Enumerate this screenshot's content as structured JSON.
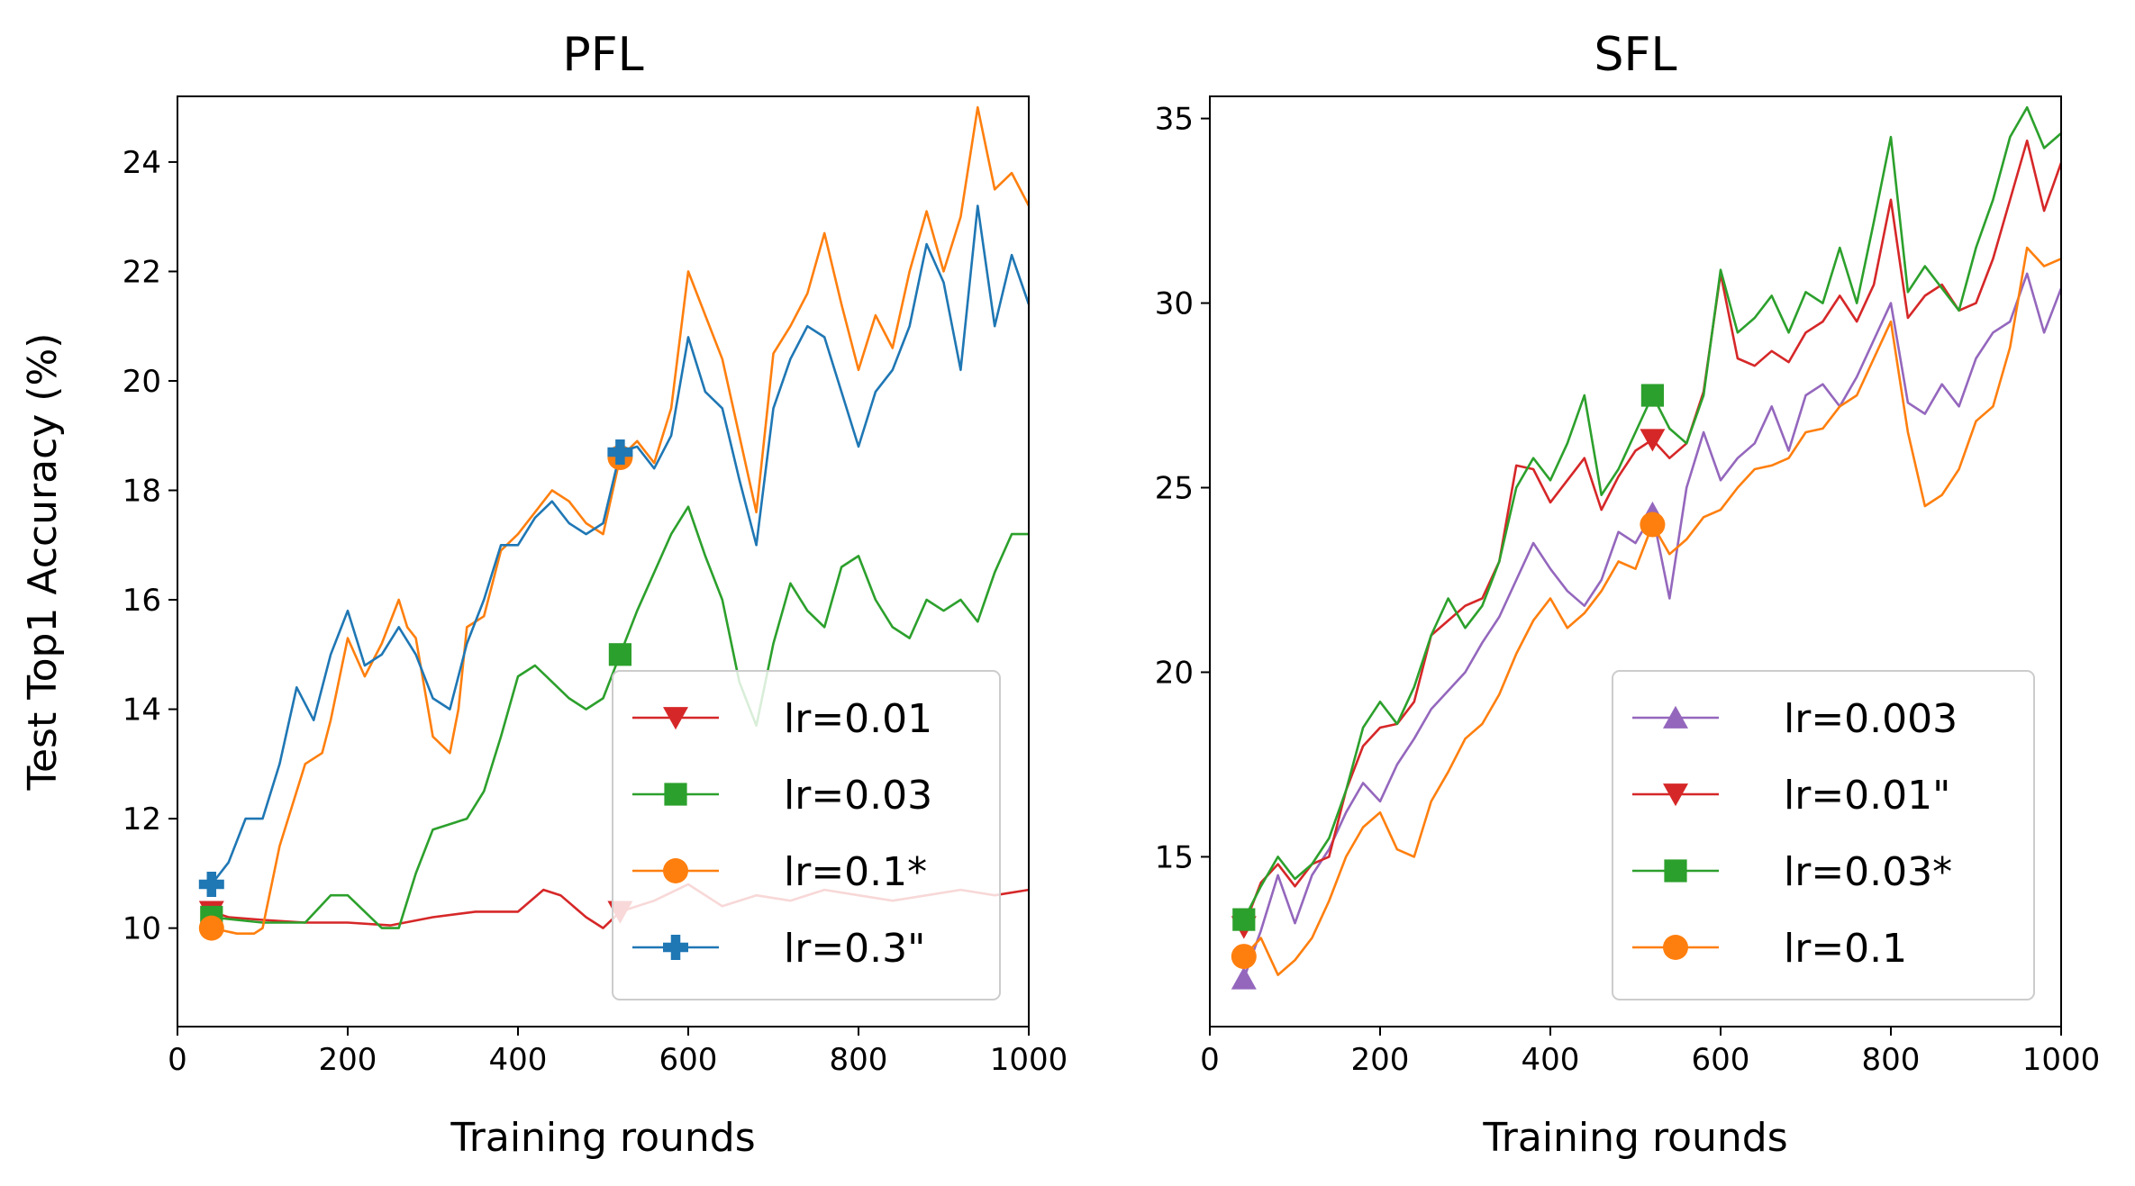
{
  "chart_data": [
    {
      "type": "line",
      "title": "PFL",
      "xlabel": "Training rounds",
      "ylabel": "Test Top1 Accuracy (%)",
      "xlim": [
        0,
        1000
      ],
      "ylim": [
        8.2,
        25.2
      ],
      "xticks": [
        0,
        200,
        400,
        600,
        800,
        1000
      ],
      "yticks": [
        10,
        12,
        14,
        16,
        18,
        20,
        22,
        24
      ],
      "legend_position": "lower-right",
      "series": [
        {
          "name": "lr=0.01",
          "color": "#d62728",
          "marker": "triangle-down",
          "marker_x": [
            40,
            520
          ],
          "x": [
            40,
            60,
            100,
            150,
            200,
            250,
            300,
            350,
            400,
            430,
            450,
            480,
            500,
            520,
            560,
            600,
            640,
            680,
            720,
            760,
            800,
            840,
            880,
            920,
            960,
            1000
          ],
          "y": [
            10.3,
            10.2,
            10.15,
            10.1,
            10.1,
            10.05,
            10.2,
            10.3,
            10.3,
            10.7,
            10.6,
            10.2,
            10.0,
            10.3,
            10.5,
            10.8,
            10.4,
            10.6,
            10.5,
            10.7,
            10.6,
            10.5,
            10.6,
            10.7,
            10.6,
            10.7
          ]
        },
        {
          "name": "lr=0.03",
          "color": "#2ca02c",
          "marker": "square",
          "marker_x": [
            40,
            520
          ],
          "x": [
            40,
            100,
            150,
            180,
            200,
            240,
            260,
            280,
            300,
            340,
            360,
            380,
            400,
            420,
            440,
            460,
            480,
            500,
            520,
            540,
            560,
            580,
            600,
            620,
            640,
            660,
            680,
            700,
            720,
            740,
            760,
            780,
            800,
            820,
            840,
            860,
            880,
            900,
            920,
            940,
            960,
            980,
            1000
          ],
          "y": [
            10.2,
            10.1,
            10.1,
            10.6,
            10.6,
            10.0,
            10.0,
            11.0,
            11.8,
            12.0,
            12.5,
            13.5,
            14.6,
            14.8,
            14.5,
            14.2,
            14.0,
            14.2,
            15.0,
            15.8,
            16.5,
            17.2,
            17.7,
            16.8,
            16.0,
            14.5,
            13.7,
            15.2,
            16.3,
            15.8,
            15.5,
            16.6,
            16.8,
            16.0,
            15.5,
            15.3,
            16.0,
            15.8,
            16.0,
            15.6,
            16.5,
            17.2,
            17.2
          ]
        },
        {
          "name": "lr=0.1*",
          "color": "#ff7f0e",
          "marker": "circle",
          "marker_x": [
            40,
            520
          ],
          "x": [
            40,
            70,
            90,
            100,
            120,
            150,
            170,
            180,
            200,
            220,
            240,
            260,
            270,
            280,
            300,
            320,
            330,
            340,
            360,
            380,
            400,
            420,
            440,
            460,
            480,
            500,
            520,
            540,
            560,
            580,
            600,
            620,
            640,
            660,
            680,
            700,
            720,
            740,
            760,
            780,
            800,
            820,
            840,
            860,
            880,
            900,
            920,
            940,
            960,
            980,
            1000
          ],
          "y": [
            10.0,
            9.9,
            9.9,
            10.0,
            11.5,
            13.0,
            13.2,
            13.8,
            15.3,
            14.6,
            15.2,
            16.0,
            15.5,
            15.3,
            13.5,
            13.2,
            14.0,
            15.5,
            15.7,
            16.9,
            17.2,
            17.6,
            18.0,
            17.8,
            17.4,
            17.2,
            18.6,
            18.9,
            18.5,
            19.5,
            22.0,
            21.2,
            20.4,
            19.0,
            17.6,
            20.5,
            21.0,
            21.6,
            22.7,
            21.4,
            20.2,
            21.2,
            20.6,
            22.0,
            23.1,
            22.0,
            23.0,
            25.0,
            23.5,
            23.8,
            23.2
          ]
        },
        {
          "name": "lr=0.3\"",
          "color": "#1f77b4",
          "marker": "plus",
          "marker_x": [
            40,
            520
          ],
          "x": [
            40,
            60,
            80,
            100,
            120,
            140,
            160,
            180,
            200,
            220,
            240,
            260,
            280,
            300,
            320,
            340,
            360,
            380,
            400,
            420,
            440,
            460,
            480,
            500,
            520,
            540,
            560,
            580,
            600,
            620,
            640,
            660,
            680,
            700,
            720,
            740,
            760,
            780,
            800,
            820,
            840,
            860,
            880,
            900,
            920,
            940,
            960,
            980,
            1000
          ],
          "y": [
            10.8,
            11.2,
            12.0,
            12.0,
            13.0,
            14.4,
            13.8,
            15.0,
            15.8,
            14.8,
            15.0,
            15.5,
            15.0,
            14.2,
            14.0,
            15.2,
            16.0,
            17.0,
            17.0,
            17.5,
            17.8,
            17.4,
            17.2,
            17.4,
            18.7,
            18.8,
            18.4,
            19.0,
            20.8,
            19.8,
            19.5,
            18.2,
            17.0,
            19.5,
            20.4,
            21.0,
            20.8,
            19.8,
            18.8,
            19.8,
            20.2,
            21.0,
            22.5,
            21.8,
            20.2,
            23.2,
            21.0,
            22.3,
            21.4
          ]
        }
      ]
    },
    {
      "type": "line",
      "title": "SFL",
      "xlabel": "Training rounds",
      "ylabel": "",
      "xlim": [
        0,
        1000
      ],
      "ylim": [
        10.4,
        35.6
      ],
      "xticks": [
        0,
        200,
        400,
        600,
        800,
        1000
      ],
      "yticks": [
        15,
        20,
        25,
        30,
        35
      ],
      "legend_position": "lower-right",
      "series": [
        {
          "name": "lr=0.003",
          "color": "#9467bd",
          "marker": "triangle-up",
          "marker_x": [
            40,
            520
          ],
          "x": [
            40,
            60,
            80,
            100,
            120,
            140,
            160,
            180,
            200,
            220,
            240,
            260,
            280,
            300,
            320,
            340,
            360,
            380,
            400,
            420,
            440,
            460,
            480,
            500,
            520,
            540,
            560,
            580,
            600,
            620,
            640,
            660,
            680,
            700,
            720,
            740,
            760,
            780,
            800,
            820,
            840,
            860,
            880,
            900,
            920,
            940,
            960,
            980,
            1000
          ],
          "y": [
            11.7,
            13.0,
            14.5,
            13.2,
            14.5,
            15.2,
            16.2,
            17.0,
            16.5,
            17.5,
            18.2,
            19.0,
            19.5,
            20.0,
            20.8,
            21.5,
            22.5,
            23.5,
            22.8,
            22.2,
            21.8,
            22.5,
            23.8,
            23.5,
            24.3,
            22.0,
            25.0,
            26.5,
            25.2,
            25.8,
            26.2,
            27.2,
            26.0,
            27.5,
            27.8,
            27.2,
            28.0,
            29.0,
            30.0,
            27.3,
            27.0,
            27.8,
            27.2,
            28.5,
            29.2,
            29.5,
            30.8,
            29.2,
            30.4
          ]
        },
        {
          "name": "lr=0.01\"",
          "color": "#d62728",
          "marker": "triangle-down",
          "marker_x": [
            40,
            520
          ],
          "x": [
            40,
            60,
            80,
            100,
            120,
            140,
            160,
            180,
            200,
            220,
            240,
            260,
            280,
            300,
            320,
            340,
            360,
            380,
            400,
            420,
            440,
            460,
            480,
            500,
            520,
            540,
            560,
            580,
            600,
            620,
            640,
            660,
            680,
            700,
            720,
            740,
            760,
            780,
            800,
            820,
            840,
            860,
            880,
            900,
            920,
            940,
            960,
            980,
            1000
          ],
          "y": [
            13.1,
            14.3,
            14.8,
            14.2,
            14.8,
            15.0,
            16.8,
            18.0,
            18.5,
            18.6,
            19.2,
            21.0,
            21.4,
            21.8,
            22.0,
            23.0,
            25.6,
            25.5,
            24.6,
            25.2,
            25.8,
            24.4,
            25.3,
            26.0,
            26.3,
            25.8,
            26.2,
            27.6,
            30.8,
            28.5,
            28.3,
            28.7,
            28.4,
            29.2,
            29.5,
            30.2,
            29.5,
            30.5,
            32.8,
            29.6,
            30.2,
            30.5,
            29.8,
            30.0,
            31.2,
            32.8,
            34.4,
            32.5,
            33.8
          ]
        },
        {
          "name": "lr=0.03*",
          "color": "#2ca02c",
          "marker": "square",
          "marker_x": [
            40,
            520
          ],
          "x": [
            40,
            60,
            80,
            100,
            120,
            140,
            160,
            180,
            200,
            220,
            240,
            260,
            280,
            300,
            320,
            340,
            360,
            380,
            400,
            420,
            440,
            460,
            480,
            500,
            520,
            540,
            560,
            580,
            600,
            620,
            640,
            660,
            680,
            700,
            720,
            740,
            760,
            780,
            800,
            820,
            840,
            860,
            880,
            900,
            920,
            940,
            960,
            980,
            1000
          ],
          "y": [
            13.3,
            14.2,
            15.0,
            14.4,
            14.8,
            15.5,
            16.8,
            18.5,
            19.2,
            18.6,
            19.6,
            21.0,
            22.0,
            21.2,
            21.8,
            23.0,
            25.0,
            25.8,
            25.2,
            26.2,
            27.5,
            24.8,
            25.5,
            26.5,
            27.5,
            26.6,
            26.2,
            27.5,
            30.9,
            29.2,
            29.6,
            30.2,
            29.2,
            30.3,
            30.0,
            31.5,
            30.0,
            32.2,
            34.5,
            30.3,
            31.0,
            30.4,
            29.8,
            31.5,
            32.8,
            34.5,
            35.3,
            34.2,
            34.6
          ]
        },
        {
          "name": "lr=0.1",
          "color": "#ff7f0e",
          "marker": "circle",
          "marker_x": [
            40,
            520
          ],
          "x": [
            40,
            60,
            80,
            100,
            120,
            140,
            160,
            180,
            200,
            220,
            240,
            260,
            280,
            300,
            320,
            340,
            360,
            380,
            400,
            420,
            440,
            460,
            480,
            500,
            520,
            540,
            560,
            580,
            600,
            620,
            640,
            660,
            680,
            700,
            720,
            740,
            760,
            780,
            800,
            820,
            840,
            860,
            880,
            900,
            920,
            940,
            960,
            980,
            1000
          ],
          "y": [
            12.3,
            12.8,
            11.8,
            12.2,
            12.8,
            13.8,
            15.0,
            15.8,
            16.2,
            15.2,
            15.0,
            16.5,
            17.3,
            18.2,
            18.6,
            19.4,
            20.5,
            21.4,
            22.0,
            21.2,
            21.6,
            22.2,
            23.0,
            22.8,
            24.0,
            23.2,
            23.6,
            24.2,
            24.4,
            25.0,
            25.5,
            25.6,
            25.8,
            26.5,
            26.6,
            27.2,
            27.5,
            28.5,
            29.5,
            26.5,
            24.5,
            24.8,
            25.5,
            26.8,
            27.2,
            28.8,
            31.5,
            31.0,
            31.2
          ]
        }
      ]
    }
  ]
}
